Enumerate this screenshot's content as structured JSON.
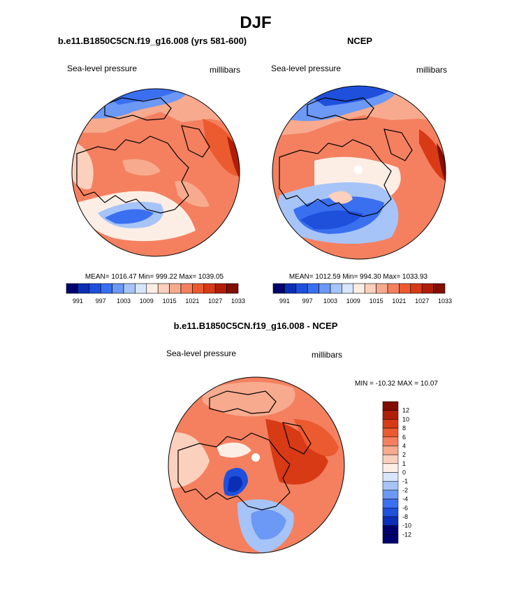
{
  "page": {
    "title": "DJF"
  },
  "colors": {
    "scale": [
      "#00006e",
      "#0a2fb6",
      "#1e50dc",
      "#3a6ff0",
      "#6c98f6",
      "#a6c4f8",
      "#d8e6fc",
      "#fdeee5",
      "#fbd0bd",
      "#f7aa8e",
      "#f48060",
      "#ec5a30",
      "#d83a16",
      "#b01e08",
      "#800f00"
    ],
    "land_outline": "#000000",
    "pole_hole": "#ffffff"
  },
  "chart_data": [
    {
      "type": "heatmap",
      "name": "model-panel",
      "title": "b.e11.B1850C5CN.f19_g16.008 (yrs 581-600)",
      "left_label": "Sea-level pressure",
      "right_label": "millibars",
      "stats": "MEAN= 1016.47  Min= 999.22  Max= 1039.05",
      "colorbar_ticks": [
        "991",
        "997",
        "1003",
        "1009",
        "1015",
        "1021",
        "1027",
        "1033"
      ]
    },
    {
      "type": "heatmap",
      "name": "ncep-panel",
      "title": "NCEP",
      "left_label": "Sea-level pressure",
      "right_label": "millibars",
      "stats": "MEAN= 1012.59  Min= 994.30  Max= 1033.93",
      "colorbar_ticks": [
        "991",
        "997",
        "1003",
        "1009",
        "1015",
        "1021",
        "1027",
        "1033"
      ]
    },
    {
      "type": "heatmap",
      "name": "difference-panel",
      "title": "b.e11.B1850C5CN.f19_g16.008 - NCEP",
      "left_label": "Sea-level pressure",
      "right_label": "millibars",
      "stats": "MIN = -10.32 MAX =  10.07",
      "colorbar_ticks": [
        "12",
        "10",
        "8",
        "6",
        "4",
        "2",
        "1",
        "0",
        "-1",
        "-2",
        "-4",
        "-6",
        "-8",
        "-10",
        "-12"
      ]
    }
  ]
}
